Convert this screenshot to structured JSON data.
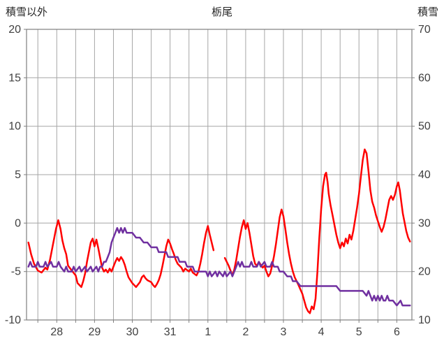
{
  "header": {
    "left_axis_title": "積雪以外",
    "title": "栃尾",
    "right_axis_title": "積雪"
  },
  "chart_data": {
    "type": "line",
    "title": "栃尾",
    "x_range": [
      0,
      10.2
    ],
    "x_tick_labels": [
      "28",
      "29",
      "30",
      "31",
      "1",
      "2",
      "3",
      "4",
      "5",
      "6"
    ],
    "x_tick_positions": [
      0.8,
      1.8,
      2.8,
      3.8,
      4.8,
      5.8,
      6.8,
      7.8,
      8.8,
      9.8
    ],
    "left_axis": {
      "label": "積雪以外",
      "min": -10,
      "max": 20,
      "ticks": [
        -10,
        -5,
        0,
        5,
        10,
        15,
        20
      ]
    },
    "right_axis": {
      "label": "積雪",
      "min": 10,
      "max": 70,
      "ticks": [
        10,
        20,
        30,
        40,
        50,
        60,
        70
      ]
    },
    "grid": {
      "color": "#a6a6a6",
      "border_color": "#7f7f7f",
      "v_start": 0.3,
      "v_interval": 0.5
    },
    "legend_position": "none",
    "series": [
      {
        "name": "積雪以外",
        "axis": "left",
        "color": "#ff0000",
        "width": 2.5,
        "points": [
          [
            0.05,
            -2.0
          ],
          [
            0.12,
            -3.2
          ],
          [
            0.2,
            -4.2
          ],
          [
            0.3,
            -4.9
          ],
          [
            0.4,
            -5.1
          ],
          [
            0.5,
            -4.6
          ],
          [
            0.55,
            -4.8
          ],
          [
            0.62,
            -3.8
          ],
          [
            0.7,
            -2.2
          ],
          [
            0.78,
            -0.6
          ],
          [
            0.84,
            0.3
          ],
          [
            0.9,
            -0.6
          ],
          [
            0.95,
            -1.8
          ],
          [
            1.0,
            -2.6
          ],
          [
            1.05,
            -3.2
          ],
          [
            1.1,
            -4.4
          ],
          [
            1.2,
            -4.9
          ],
          [
            1.3,
            -5.4
          ],
          [
            1.35,
            -6.2
          ],
          [
            1.45,
            -6.6
          ],
          [
            1.5,
            -6.0
          ],
          [
            1.55,
            -5.2
          ],
          [
            1.6,
            -4.0
          ],
          [
            1.65,
            -3.0
          ],
          [
            1.7,
            -2.0
          ],
          [
            1.75,
            -1.6
          ],
          [
            1.8,
            -2.4
          ],
          [
            1.85,
            -1.7
          ],
          [
            1.9,
            -2.6
          ],
          [
            1.95,
            -3.6
          ],
          [
            2.0,
            -4.6
          ],
          [
            2.05,
            -5.0
          ],
          [
            2.1,
            -4.8
          ],
          [
            2.15,
            -5.1
          ],
          [
            2.2,
            -4.7
          ],
          [
            2.25,
            -5.0
          ],
          [
            2.3,
            -4.5
          ],
          [
            2.35,
            -4.0
          ],
          [
            2.4,
            -3.6
          ],
          [
            2.45,
            -3.9
          ],
          [
            2.5,
            -3.5
          ],
          [
            2.55,
            -3.8
          ],
          [
            2.6,
            -4.3
          ],
          [
            2.65,
            -5.0
          ],
          [
            2.7,
            -5.6
          ],
          [
            2.8,
            -6.2
          ],
          [
            2.9,
            -6.6
          ],
          [
            3.0,
            -6.1
          ],
          [
            3.05,
            -5.6
          ],
          [
            3.1,
            -5.4
          ],
          [
            3.15,
            -5.7
          ],
          [
            3.2,
            -5.9
          ],
          [
            3.3,
            -6.1
          ],
          [
            3.35,
            -6.4
          ],
          [
            3.4,
            -6.6
          ],
          [
            3.45,
            -6.3
          ],
          [
            3.5,
            -5.9
          ],
          [
            3.55,
            -5.3
          ],
          [
            3.6,
            -4.4
          ],
          [
            3.65,
            -3.4
          ],
          [
            3.7,
            -2.4
          ],
          [
            3.75,
            -1.7
          ],
          [
            3.8,
            -2.1
          ],
          [
            3.85,
            -2.7
          ],
          [
            3.9,
            -3.2
          ],
          [
            3.95,
            -3.8
          ],
          [
            4.0,
            -4.2
          ],
          [
            4.1,
            -4.6
          ],
          [
            4.15,
            -5.0
          ],
          [
            4.2,
            -4.7
          ],
          [
            4.3,
            -5.0
          ],
          [
            4.35,
            -4.7
          ],
          [
            4.4,
            -5.1
          ],
          [
            4.5,
            -5.4
          ],
          [
            4.55,
            -5.0
          ],
          [
            4.6,
            -4.2
          ],
          [
            4.65,
            -3.2
          ],
          [
            4.7,
            -2.0
          ],
          [
            4.75,
            -1.0
          ],
          [
            4.8,
            -0.3
          ],
          [
            4.85,
            -1.2
          ],
          [
            4.9,
            -2.0
          ],
          [
            4.95,
            -2.8
          ],
          null,
          [
            5.25,
            -3.6
          ],
          [
            5.3,
            -4.0
          ],
          [
            5.35,
            -4.4
          ],
          [
            5.4,
            -4.9
          ],
          [
            5.45,
            -5.4
          ],
          [
            5.5,
            -4.8
          ],
          [
            5.55,
            -3.8
          ],
          [
            5.6,
            -2.6
          ],
          [
            5.65,
            -1.4
          ],
          [
            5.7,
            -0.4
          ],
          [
            5.75,
            0.3
          ],
          [
            5.8,
            -0.6
          ],
          [
            5.85,
            0.0
          ],
          [
            5.9,
            -1.0
          ],
          [
            5.95,
            -2.2
          ],
          [
            6.0,
            -3.4
          ],
          [
            6.05,
            -4.2
          ],
          [
            6.1,
            -4.4
          ],
          [
            6.15,
            -4.0
          ],
          [
            6.2,
            -4.3
          ],
          [
            6.25,
            -4.6
          ],
          [
            6.3,
            -4.4
          ],
          [
            6.35,
            -5.0
          ],
          [
            6.4,
            -5.5
          ],
          [
            6.45,
            -5.2
          ],
          [
            6.5,
            -4.4
          ],
          [
            6.55,
            -3.4
          ],
          [
            6.6,
            -2.2
          ],
          [
            6.65,
            -0.8
          ],
          [
            6.7,
            0.6
          ],
          [
            6.75,
            1.4
          ],
          [
            6.8,
            0.7
          ],
          [
            6.85,
            -0.6
          ],
          [
            6.9,
            -2.0
          ],
          [
            6.95,
            -3.2
          ],
          [
            7.0,
            -4.2
          ],
          [
            7.05,
            -5.0
          ],
          [
            7.1,
            -5.6
          ],
          [
            7.2,
            -6.4
          ],
          [
            7.3,
            -7.3
          ],
          [
            7.35,
            -8.0
          ],
          [
            7.4,
            -8.7
          ],
          [
            7.45,
            -9.1
          ],
          [
            7.5,
            -9.3
          ],
          [
            7.55,
            -8.6
          ],
          [
            7.6,
            -8.9
          ],
          [
            7.65,
            -7.8
          ],
          [
            7.7,
            -5.0
          ],
          [
            7.75,
            -1.5
          ],
          [
            7.8,
            1.5
          ],
          [
            7.85,
            3.8
          ],
          [
            7.9,
            5.0
          ],
          [
            7.93,
            5.2
          ],
          [
            7.97,
            4.2
          ],
          [
            8.0,
            3.0
          ],
          [
            8.05,
            1.8
          ],
          [
            8.1,
            0.8
          ],
          [
            8.15,
            -0.2
          ],
          [
            8.2,
            -1.2
          ],
          [
            8.25,
            -2.0
          ],
          [
            8.3,
            -2.6
          ],
          [
            8.35,
            -2.0
          ],
          [
            8.4,
            -2.4
          ],
          [
            8.45,
            -1.6
          ],
          [
            8.5,
            -2.1
          ],
          [
            8.55,
            -1.2
          ],
          [
            8.6,
            -1.7
          ],
          [
            8.65,
            -0.8
          ],
          [
            8.7,
            0.4
          ],
          [
            8.75,
            1.6
          ],
          [
            8.8,
            3.0
          ],
          [
            8.85,
            4.8
          ],
          [
            8.9,
            6.5
          ],
          [
            8.95,
            7.6
          ],
          [
            9.0,
            7.2
          ],
          [
            9.05,
            5.4
          ],
          [
            9.1,
            3.4
          ],
          [
            9.15,
            2.2
          ],
          [
            9.2,
            1.6
          ],
          [
            9.25,
            0.8
          ],
          [
            9.3,
            0.2
          ],
          [
            9.35,
            -0.4
          ],
          [
            9.4,
            -0.9
          ],
          [
            9.45,
            -0.4
          ],
          [
            9.5,
            0.4
          ],
          [
            9.55,
            1.4
          ],
          [
            9.6,
            2.4
          ],
          [
            9.65,
            2.8
          ],
          [
            9.7,
            2.4
          ],
          [
            9.75,
            2.9
          ],
          [
            9.8,
            3.8
          ],
          [
            9.84,
            4.2
          ],
          [
            9.88,
            3.4
          ],
          [
            9.92,
            2.2
          ],
          [
            9.96,
            1.0
          ],
          [
            10.0,
            0.2
          ],
          [
            10.05,
            -0.8
          ],
          [
            10.1,
            -1.5
          ],
          [
            10.15,
            -1.9
          ]
        ]
      },
      {
        "name": "積雪",
        "axis": "right",
        "color": "#7030a0",
        "width": 2.5,
        "points": [
          [
            0.05,
            21
          ],
          [
            0.1,
            22
          ],
          [
            0.15,
            21
          ],
          [
            0.25,
            21
          ],
          [
            0.3,
            22
          ],
          [
            0.35,
            21
          ],
          [
            0.45,
            21
          ],
          [
            0.5,
            22
          ],
          [
            0.55,
            21
          ],
          [
            0.65,
            22
          ],
          [
            0.7,
            21
          ],
          [
            0.8,
            21
          ],
          [
            0.85,
            22
          ],
          [
            0.9,
            21
          ],
          [
            1.0,
            20
          ],
          [
            1.05,
            21
          ],
          [
            1.1,
            20
          ],
          [
            1.2,
            20
          ],
          [
            1.25,
            21
          ],
          [
            1.3,
            20
          ],
          [
            1.4,
            21
          ],
          [
            1.45,
            20
          ],
          [
            1.55,
            21
          ],
          [
            1.6,
            20
          ],
          [
            1.7,
            21
          ],
          [
            1.75,
            20
          ],
          [
            1.85,
            21
          ],
          [
            1.9,
            20
          ],
          [
            1.95,
            21
          ],
          [
            2.0,
            21
          ],
          [
            2.05,
            22
          ],
          [
            2.1,
            22
          ],
          [
            2.15,
            23
          ],
          [
            2.2,
            24
          ],
          [
            2.25,
            26
          ],
          [
            2.3,
            27
          ],
          [
            2.35,
            28
          ],
          [
            2.4,
            29
          ],
          [
            2.45,
            28
          ],
          [
            2.5,
            29
          ],
          [
            2.55,
            28
          ],
          [
            2.6,
            29
          ],
          [
            2.65,
            28
          ],
          [
            2.7,
            28
          ],
          [
            2.8,
            28
          ],
          [
            2.9,
            27
          ],
          [
            3.0,
            27
          ],
          [
            3.1,
            26
          ],
          [
            3.2,
            26
          ],
          [
            3.3,
            25
          ],
          [
            3.45,
            25
          ],
          [
            3.5,
            24
          ],
          [
            3.6,
            24
          ],
          [
            3.7,
            24
          ],
          [
            3.75,
            23
          ],
          [
            3.9,
            23
          ],
          [
            4.0,
            23
          ],
          [
            4.05,
            22
          ],
          [
            4.2,
            22
          ],
          [
            4.25,
            21
          ],
          [
            4.4,
            21
          ],
          [
            4.45,
            20
          ],
          [
            4.6,
            20
          ],
          [
            4.75,
            20
          ],
          [
            4.8,
            19
          ],
          [
            4.85,
            20
          ],
          [
            4.9,
            19
          ],
          [
            5.0,
            20
          ],
          [
            5.05,
            19
          ],
          [
            5.1,
            20
          ],
          [
            5.2,
            19
          ],
          [
            5.25,
            20
          ],
          [
            5.3,
            19
          ],
          [
            5.4,
            20
          ],
          [
            5.45,
            19
          ],
          [
            5.5,
            20
          ],
          [
            5.55,
            21
          ],
          [
            5.6,
            22
          ],
          [
            5.65,
            21
          ],
          [
            5.7,
            22
          ],
          [
            5.75,
            21
          ],
          [
            5.8,
            21
          ],
          [
            5.9,
            21
          ],
          [
            5.95,
            22
          ],
          [
            6.0,
            21
          ],
          [
            6.1,
            21
          ],
          [
            6.15,
            22
          ],
          [
            6.2,
            21
          ],
          [
            6.3,
            22
          ],
          [
            6.35,
            21
          ],
          [
            6.45,
            21
          ],
          [
            6.5,
            22
          ],
          [
            6.55,
            21
          ],
          [
            6.65,
            21
          ],
          [
            6.7,
            20
          ],
          [
            6.8,
            20
          ],
          [
            6.9,
            19
          ],
          [
            7.0,
            19
          ],
          [
            7.05,
            18
          ],
          [
            7.15,
            18
          ],
          [
            7.25,
            17
          ],
          [
            7.4,
            17
          ],
          [
            7.6,
            17
          ],
          [
            7.8,
            17
          ],
          [
            8.0,
            17
          ],
          [
            8.2,
            17
          ],
          [
            8.3,
            16
          ],
          [
            8.5,
            16
          ],
          [
            8.7,
            16
          ],
          [
            8.9,
            16
          ],
          [
            9.0,
            15
          ],
          [
            9.05,
            16
          ],
          [
            9.1,
            15
          ],
          [
            9.15,
            14
          ],
          [
            9.2,
            15
          ],
          [
            9.25,
            14
          ],
          [
            9.3,
            15
          ],
          [
            9.35,
            14
          ],
          [
            9.4,
            15
          ],
          [
            9.45,
            14
          ],
          [
            9.5,
            14
          ],
          [
            9.55,
            15
          ],
          [
            9.6,
            14
          ],
          [
            9.7,
            14
          ],
          [
            9.8,
            13
          ],
          [
            9.9,
            14
          ],
          [
            9.95,
            13
          ],
          [
            10.05,
            13
          ],
          [
            10.15,
            13
          ]
        ]
      }
    ]
  }
}
